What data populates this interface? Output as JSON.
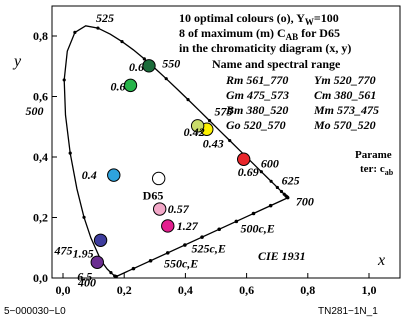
{
  "chart_data": {
    "type": "scatter",
    "xlabel": "x",
    "ylabel": "y",
    "xlim": [
      0.0,
      1.0
    ],
    "ylim": [
      0.0,
      0.85
    ],
    "x_ticks": [
      {
        "v": 0.0,
        "t": "0,0"
      },
      {
        "v": 0.2,
        "t": "0,2"
      },
      {
        "v": 0.4,
        "t": "0,4"
      },
      {
        "v": 0.6,
        "t": "0,6"
      },
      {
        "v": 0.8,
        "t": "0,8"
      },
      {
        "v": 1.0,
        "t": "1,0"
      }
    ],
    "y_ticks": [
      {
        "v": 0.0,
        "t": "0,0"
      },
      {
        "v": 0.2,
        "t": "0,2"
      },
      {
        "v": 0.4,
        "t": "0,4"
      },
      {
        "v": 0.6,
        "t": "0,6"
      },
      {
        "v": 0.8,
        "t": "0,8"
      }
    ],
    "diagram_label": "CIE 1931",
    "locus": [
      [
        0.1741,
        0.005
      ],
      [
        0.1733,
        0.0048
      ],
      [
        0.1726,
        0.0048
      ],
      [
        0.1714,
        0.0051
      ],
      [
        0.1689,
        0.0069
      ],
      [
        0.1644,
        0.0109
      ],
      [
        0.1566,
        0.0177
      ],
      [
        0.144,
        0.0297
      ],
      [
        0.1241,
        0.0578
      ],
      [
        0.0913,
        0.1327
      ],
      [
        0.0687,
        0.2007
      ],
      [
        0.0454,
        0.295
      ],
      [
        0.0235,
        0.4127
      ],
      [
        0.0082,
        0.5384
      ],
      [
        0.0039,
        0.6548
      ],
      [
        0.0139,
        0.7502
      ],
      [
        0.0389,
        0.812
      ],
      [
        0.0743,
        0.8338
      ],
      [
        0.1142,
        0.8262
      ],
      [
        0.1547,
        0.8059
      ],
      [
        0.1929,
        0.7816
      ],
      [
        0.2296,
        0.7543
      ],
      [
        0.2658,
        0.7243
      ],
      [
        0.3016,
        0.6923
      ],
      [
        0.3373,
        0.6589
      ],
      [
        0.3731,
        0.6245
      ],
      [
        0.4087,
        0.5896
      ],
      [
        0.4441,
        0.5547
      ],
      [
        0.4788,
        0.5202
      ],
      [
        0.5125,
        0.4866
      ],
      [
        0.5448,
        0.4544
      ],
      [
        0.5752,
        0.4242
      ],
      [
        0.6029,
        0.3965
      ],
      [
        0.627,
        0.3725
      ],
      [
        0.6482,
        0.3514
      ],
      [
        0.6658,
        0.334
      ],
      [
        0.6801,
        0.3197
      ],
      [
        0.6915,
        0.3083
      ],
      [
        0.7006,
        0.2993
      ],
      [
        0.7079,
        0.292
      ],
      [
        0.714,
        0.2859
      ],
      [
        0.719,
        0.2809
      ],
      [
        0.723,
        0.277
      ],
      [
        0.726,
        0.274
      ],
      [
        0.7283,
        0.2717
      ],
      [
        0.73,
        0.27
      ],
      [
        0.7311,
        0.2689
      ],
      [
        0.732,
        0.268
      ],
      [
        0.7327,
        0.2673
      ],
      [
        0.7334,
        0.2666
      ],
      [
        0.734,
        0.266
      ],
      [
        0.7344,
        0.2656
      ],
      [
        0.7347,
        0.2653
      ]
    ],
    "wavelength_labels": [
      {
        "t": "525",
        "x": 0.1142,
        "y": 0.8262,
        "dx": -2,
        "dy": -6
      },
      {
        "t": "550",
        "x": 0.3016,
        "y": 0.6923,
        "dx": 7,
        "dy": -1
      },
      {
        "t": "575",
        "x": 0.4788,
        "y": 0.5202,
        "dx": 5,
        "dy": -5
      },
      {
        "t": "600",
        "x": 0.627,
        "y": 0.3725,
        "dx": 6,
        "dy": 2
      },
      {
        "t": "625",
        "x": 0.6915,
        "y": 0.3083,
        "dx": 7,
        "dy": 0
      },
      {
        "t": "700",
        "x": 0.7347,
        "y": 0.2653,
        "dx": 8,
        "dy": 8
      },
      {
        "t": "500",
        "x": 0.0082,
        "y": 0.5384,
        "dx": -40,
        "dy": 0
      },
      {
        "t": "475",
        "x": 0.1096,
        "y": 0.0868,
        "dx": -42,
        "dy": 3
      },
      {
        "t": "400",
        "x": 0.1733,
        "y": 0.0048,
        "dx": -38,
        "dy": 10
      }
    ],
    "grey_lines_labels": [
      {
        "t": "500c,E",
        "x": 0.58,
        "y": 0.15
      },
      {
        "t": "525c,E",
        "x": 0.42,
        "y": 0.085
      },
      {
        "t": "550c,E",
        "x": 0.33,
        "y": 0.035
      }
    ],
    "white_point": {
      "name": "D65",
      "x": 0.3127,
      "y": 0.329
    },
    "optimal_colours": [
      {
        "name": "Rm 561_770",
        "x": 0.5905,
        "y": 0.3926,
        "color": "#e8262b",
        "value": "0.69"
      },
      {
        "name": "Ym 520_770",
        "x": 0.4699,
        "y": 0.4917,
        "color": "#fcf000",
        "value": "0.43"
      },
      {
        "name": "Gm 475_573",
        "x": 0.2205,
        "y": 0.6368,
        "color": "#27b44a",
        "value": "0.6"
      },
      {
        "name": "Cm 380_561",
        "x": 0.1659,
        "y": 0.3401,
        "color": "#2ea3de",
        "value": "0.4"
      },
      {
        "name": "Bm 380_520",
        "x": 0.1228,
        "y": 0.1247,
        "color": "#3e3d9e",
        "value": "1.95"
      },
      {
        "name": "Mm 573_475",
        "x": 0.3424,
        "y": 0.1721,
        "color": "#e31f8f",
        "value": "1.27"
      },
      {
        "name": "Go 520_570",
        "x": 0.2809,
        "y": 0.7015,
        "color": "#1b6b3a",
        "value": "0.6"
      },
      {
        "name": "Mo 570_520",
        "x": 0.316,
        "y": 0.228,
        "color": "#f2a8c8",
        "value": "0.57"
      },
      {
        "name": "Bo 475_505",
        "x": 0.112,
        "y": 0.052,
        "color": "#6a2d90",
        "value": "6.5"
      },
      {
        "name": "Yo 573_585",
        "x": 0.44,
        "y": 0.503,
        "color": "#c9dc6a",
        "value": "0.42"
      }
    ],
    "annotations": {
      "line1": "10 optimal colours (o), Y",
      "line1_sub": "W",
      "line1_tail": "=100",
      "line2": "8 of maximum (m) C",
      "line2_sub": "AB",
      "line2_tail": " for D65",
      "line3": "in the chromaticity diagram (x, y)",
      "line4": "Name and spectral range",
      "legend": [
        {
          "left": "Rm 561_770",
          "right": "Ym 520_770"
        },
        {
          "left": "Gm 475_573",
          "right": "Cm 380_561"
        },
        {
          "left": "Bm 380_520",
          "right": "Mm 573_475"
        },
        {
          "left": "Go 520_570",
          "right": "Mo 570_520"
        }
      ],
      "param_line1": "Parame",
      "param_line2": "ter: c",
      "param_sub": "ab"
    }
  },
  "footer": {
    "left": "5−000030−L0",
    "right": "TN281−1N_1"
  }
}
